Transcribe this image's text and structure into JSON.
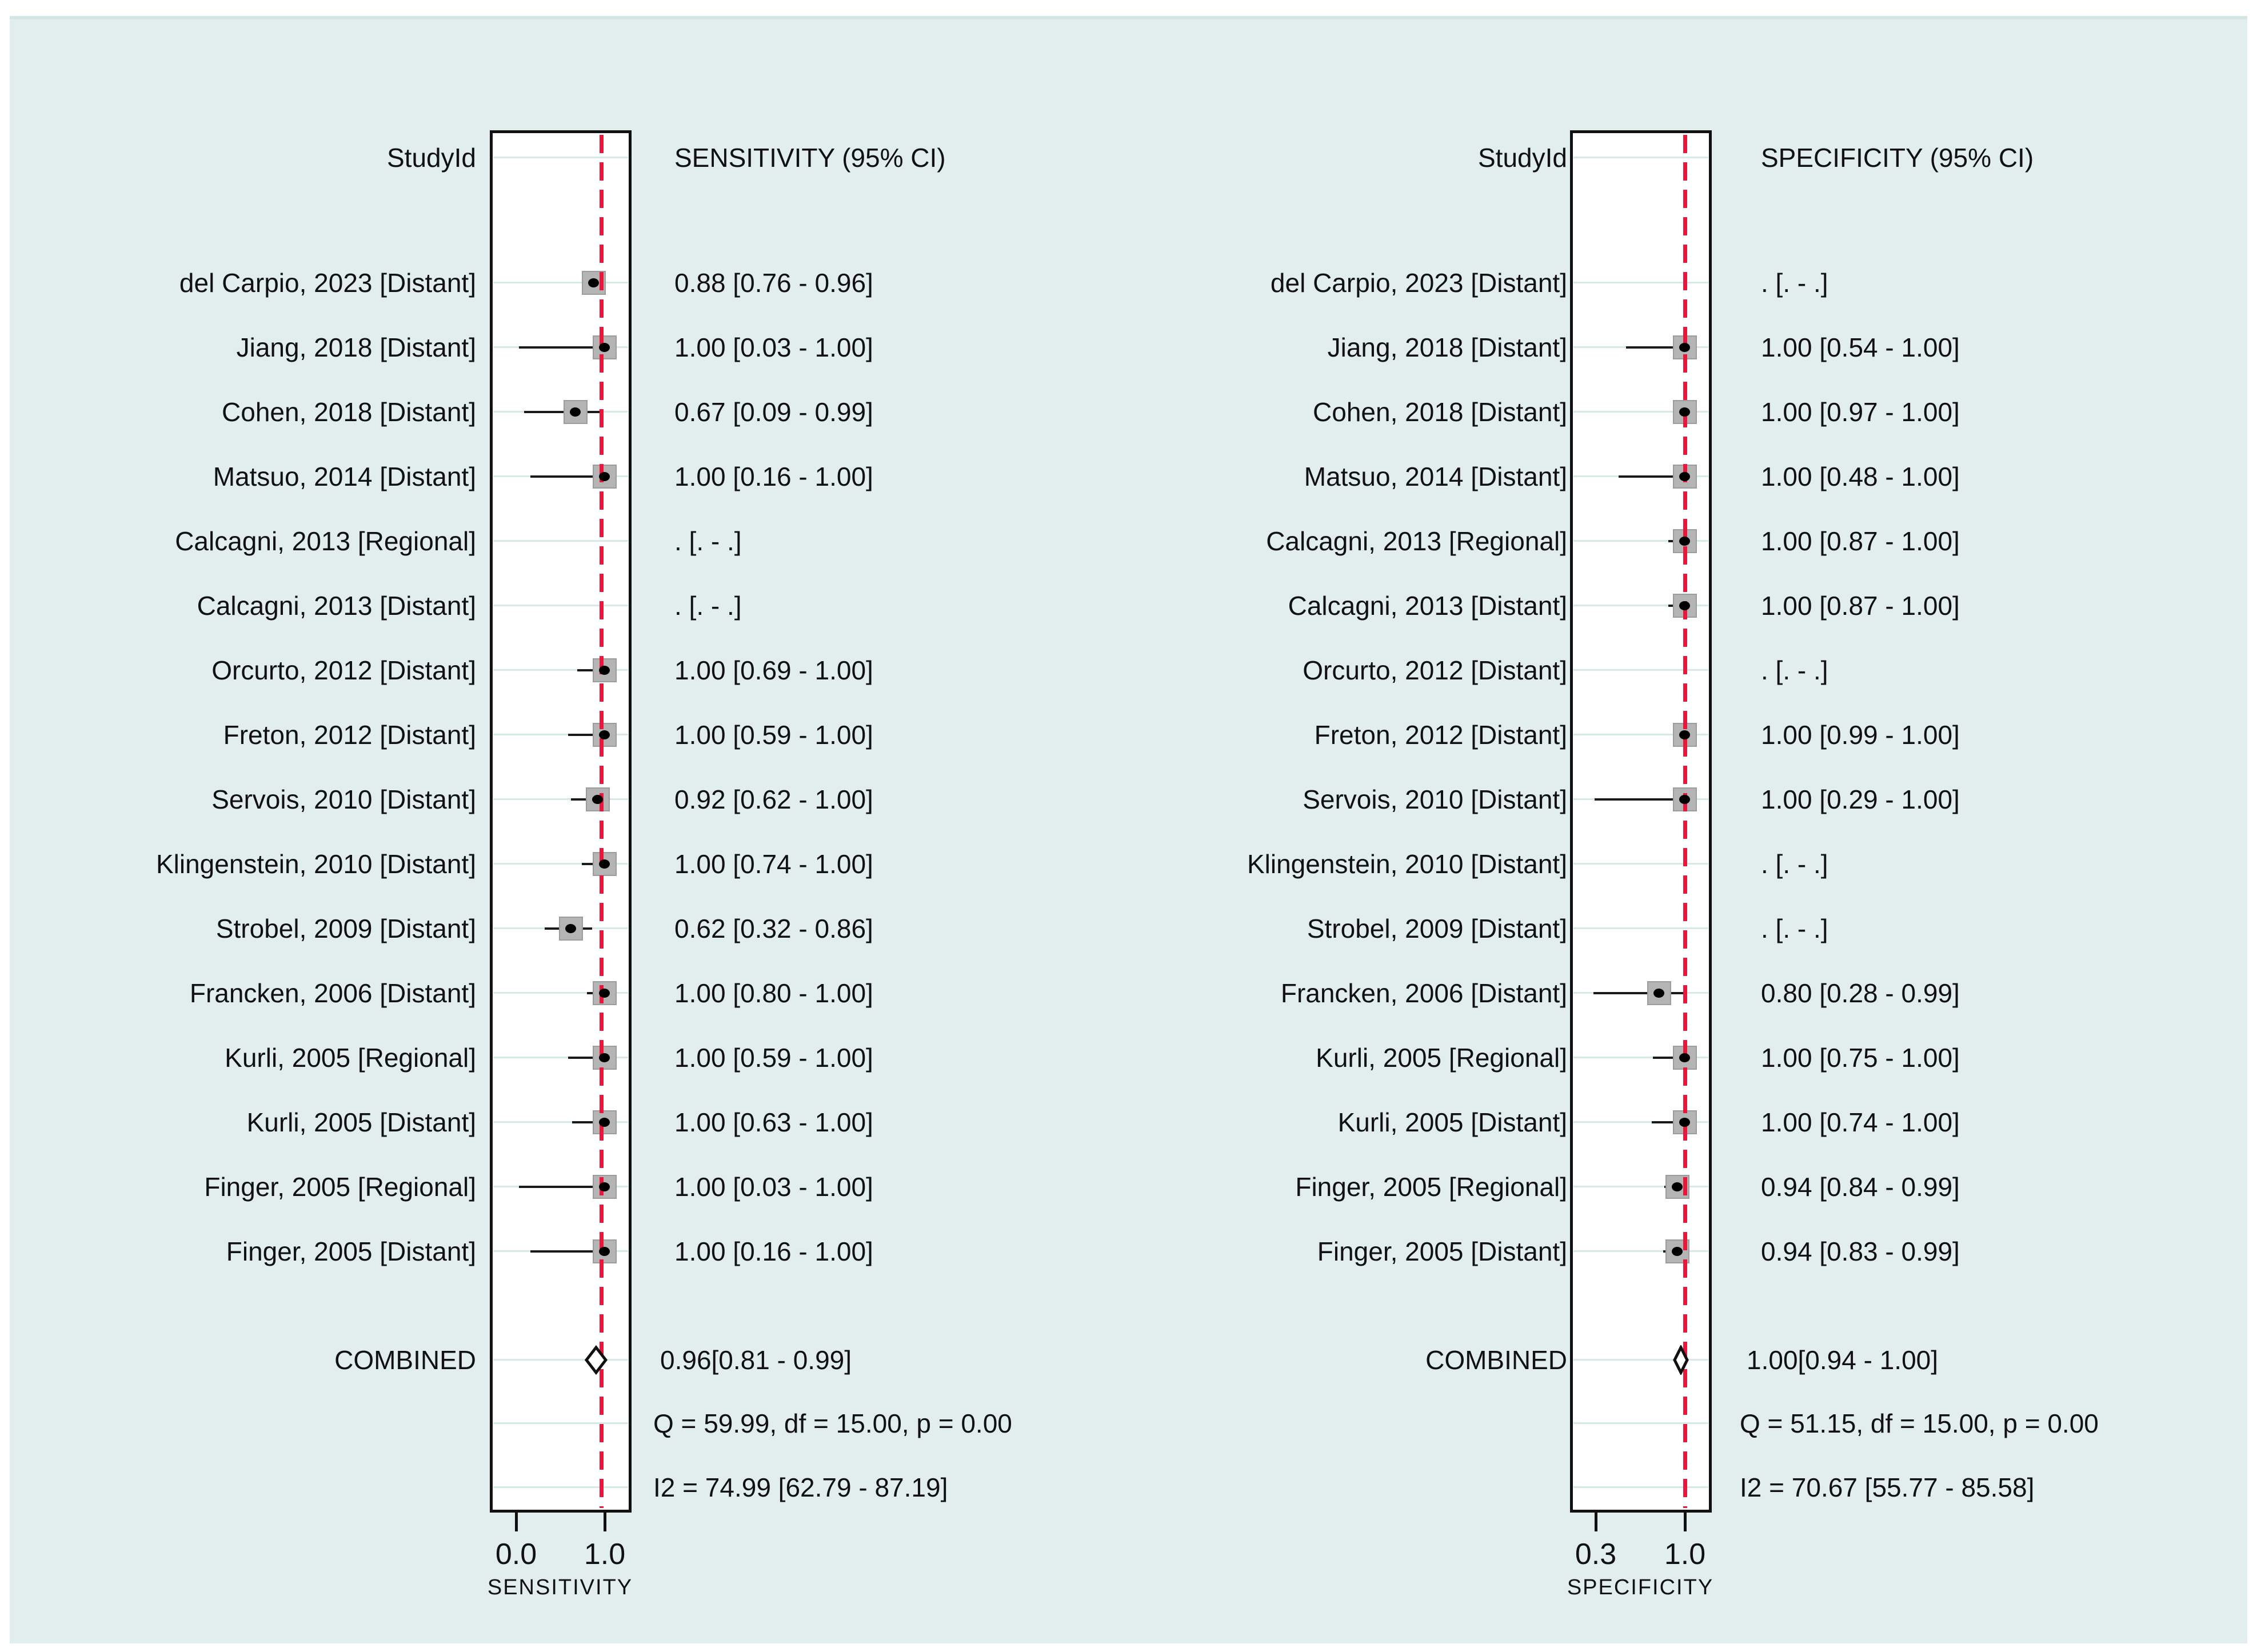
{
  "colors": {
    "background": "#e2eeee",
    "plot_background": "#ffffff",
    "reference_line": "#e8173c",
    "marker_fill": "#b4b4b4",
    "marker_border": "#9c9c9c",
    "ci_line": "#1a1a1a",
    "gridline": "#d6e9e9",
    "text": "#111111"
  },
  "chart_data": {
    "type": "forest",
    "layout_note": "two mirrored forest-plot panels, gridlines on, reference line dashed red at pooled estimate",
    "panels": [
      {
        "studyid_header": "StudyId",
        "header": "SENSITIVITY (95% CI)",
        "axis_label": "SENSITIVITY",
        "ticks": [
          "0.0",
          "1.0"
        ],
        "tick_values": [
          0.0,
          1.0
        ],
        "studies": [
          {
            "label": "del Carpio, 2023 [Distant]",
            "ci_text": "0.88 [0.76 - 0.96]",
            "est": 0.88,
            "lo": 0.76,
            "hi": 0.96
          },
          {
            "label": "Jiang, 2018 [Distant]",
            "ci_text": "1.00 [0.03 - 1.00]",
            "est": 1.0,
            "lo": 0.03,
            "hi": 1.0
          },
          {
            "label": "Cohen, 2018 [Distant]",
            "ci_text": "0.67 [0.09 - 0.99]",
            "est": 0.67,
            "lo": 0.09,
            "hi": 0.99
          },
          {
            "label": "Matsuo, 2014 [Distant]",
            "ci_text": "1.00 [0.16 - 1.00]",
            "est": 1.0,
            "lo": 0.16,
            "hi": 1.0
          },
          {
            "label": "Calcagni, 2013 [Regional]",
            "ci_text": ". [. - .]",
            "est": null,
            "lo": null,
            "hi": null
          },
          {
            "label": "Calcagni, 2013 [Distant]",
            "ci_text": ". [. - .]",
            "est": null,
            "lo": null,
            "hi": null
          },
          {
            "label": "Orcurto, 2012 [Distant]",
            "ci_text": "1.00 [0.69 - 1.00]",
            "est": 1.0,
            "lo": 0.69,
            "hi": 1.0
          },
          {
            "label": "Freton, 2012 [Distant]",
            "ci_text": "1.00 [0.59 - 1.00]",
            "est": 1.0,
            "lo": 0.59,
            "hi": 1.0
          },
          {
            "label": "Servois, 2010 [Distant]",
            "ci_text": "0.92 [0.62 - 1.00]",
            "est": 0.92,
            "lo": 0.62,
            "hi": 1.0
          },
          {
            "label": "Klingenstein, 2010 [Distant]",
            "ci_text": "1.00 [0.74 - 1.00]",
            "est": 1.0,
            "lo": 0.74,
            "hi": 1.0
          },
          {
            "label": "Strobel, 2009 [Distant]",
            "ci_text": "0.62 [0.32 - 0.86]",
            "est": 0.62,
            "lo": 0.32,
            "hi": 0.86
          },
          {
            "label": "Francken, 2006 [Distant]",
            "ci_text": "1.00 [0.80 - 1.00]",
            "est": 1.0,
            "lo": 0.8,
            "hi": 1.0
          },
          {
            "label": "Kurli, 2005 [Regional]",
            "ci_text": "1.00 [0.59 - 1.00]",
            "est": 1.0,
            "lo": 0.59,
            "hi": 1.0
          },
          {
            "label": "Kurli, 2005 [Distant]",
            "ci_text": "1.00 [0.63 - 1.00]",
            "est": 1.0,
            "lo": 0.63,
            "hi": 1.0
          },
          {
            "label": "Finger, 2005 [Regional]",
            "ci_text": "1.00 [0.03 - 1.00]",
            "est": 1.0,
            "lo": 0.03,
            "hi": 1.0
          },
          {
            "label": "Finger, 2005 [Distant]",
            "ci_text": "1.00 [0.16 - 1.00]",
            "est": 1.0,
            "lo": 0.16,
            "hi": 1.0
          }
        ],
        "combined": {
          "label": "COMBINED",
          "ci_text": "0.96[0.81 - 0.99]",
          "est": 0.96,
          "lo": 0.81,
          "hi": 0.99
        },
        "heterogeneity_q": "Q = 59.99, df = 15.00, p =  0.00",
        "heterogeneity_i2": "I2 = 74.99 [62.79 - 87.19]"
      },
      {
        "studyid_header": "StudyId",
        "header": "SPECIFICITY (95% CI)",
        "axis_label": "SPECIFICITY",
        "ticks": [
          "0.3",
          "1.0"
        ],
        "tick_values": [
          0.3,
          1.0
        ],
        "studies": [
          {
            "label": "del Carpio, 2023 [Distant]",
            "ci_text": ". [. - .]",
            "est": null,
            "lo": null,
            "hi": null
          },
          {
            "label": "Jiang, 2018 [Distant]",
            "ci_text": "1.00 [0.54 - 1.00]",
            "est": 1.0,
            "lo": 0.54,
            "hi": 1.0
          },
          {
            "label": "Cohen, 2018 [Distant]",
            "ci_text": "1.00 [0.97 - 1.00]",
            "est": 1.0,
            "lo": 0.97,
            "hi": 1.0
          },
          {
            "label": "Matsuo, 2014 [Distant]",
            "ci_text": "1.00 [0.48 - 1.00]",
            "est": 1.0,
            "lo": 0.48,
            "hi": 1.0
          },
          {
            "label": "Calcagni, 2013 [Regional]",
            "ci_text": "1.00 [0.87 - 1.00]",
            "est": 1.0,
            "lo": 0.87,
            "hi": 1.0
          },
          {
            "label": "Calcagni, 2013 [Distant]",
            "ci_text": "1.00 [0.87 - 1.00]",
            "est": 1.0,
            "lo": 0.87,
            "hi": 1.0
          },
          {
            "label": "Orcurto, 2012 [Distant]",
            "ci_text": ". [. - .]",
            "est": null,
            "lo": null,
            "hi": null
          },
          {
            "label": "Freton, 2012 [Distant]",
            "ci_text": "1.00 [0.99 - 1.00]",
            "est": 1.0,
            "lo": 0.99,
            "hi": 1.0
          },
          {
            "label": "Servois, 2010 [Distant]",
            "ci_text": "1.00 [0.29 - 1.00]",
            "est": 1.0,
            "lo": 0.29,
            "hi": 1.0
          },
          {
            "label": "Klingenstein, 2010 [Distant]",
            "ci_text": ". [. - .]",
            "est": null,
            "lo": null,
            "hi": null
          },
          {
            "label": "Strobel, 2009 [Distant]",
            "ci_text": ". [. - .]",
            "est": null,
            "lo": null,
            "hi": null
          },
          {
            "label": "Francken, 2006 [Distant]",
            "ci_text": "0.80 [0.28 - 0.99]",
            "est": 0.8,
            "lo": 0.28,
            "hi": 0.99
          },
          {
            "label": "Kurli, 2005 [Regional]",
            "ci_text": "1.00 [0.75 - 1.00]",
            "est": 1.0,
            "lo": 0.75,
            "hi": 1.0
          },
          {
            "label": "Kurli, 2005 [Distant]",
            "ci_text": "1.00 [0.74 - 1.00]",
            "est": 1.0,
            "lo": 0.74,
            "hi": 1.0
          },
          {
            "label": "Finger, 2005 [Regional]",
            "ci_text": "0.94 [0.84 - 0.99]",
            "est": 0.94,
            "lo": 0.84,
            "hi": 0.99
          },
          {
            "label": "Finger, 2005 [Distant]",
            "ci_text": "0.94 [0.83 - 0.99]",
            "est": 0.94,
            "lo": 0.83,
            "hi": 0.99
          }
        ],
        "combined": {
          "label": "COMBINED",
          "ci_text": "1.00[0.94 - 1.00]",
          "est": 1.0,
          "lo": 0.94,
          "hi": 1.0
        },
        "heterogeneity_q": "Q = 51.15, df = 15.00, p =  0.00",
        "heterogeneity_i2": "I2 = 70.67 [55.77 - 85.58]"
      }
    ]
  }
}
